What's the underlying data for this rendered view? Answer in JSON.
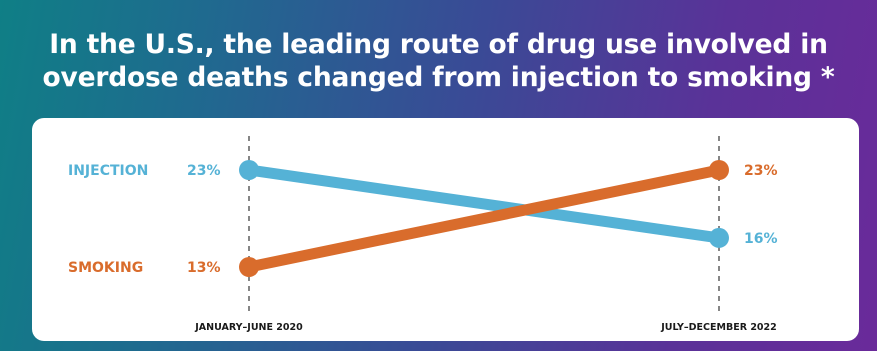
{
  "headline": {
    "line1": "In the U.S., the leading route of drug use involved in",
    "line2": "overdose deaths changed from injection to smoking *"
  },
  "colors": {
    "injection": "#55b2d6",
    "smoking": "#d96c2c",
    "background_start": "#0f7f86",
    "background_end": "#6a2a9a"
  },
  "chart_data": {
    "type": "line",
    "categories": [
      "JANUARY–JUNE 2020",
      "JULY–DECEMBER 2022"
    ],
    "series": [
      {
        "name": "INJECTION",
        "values": [
          23,
          16
        ],
        "value_labels": [
          "23%",
          "16%"
        ],
        "color": "#55b2d6"
      },
      {
        "name": "SMOKING",
        "values": [
          13,
          23
        ],
        "value_labels": [
          "13%",
          "23%"
        ],
        "color": "#d96c2c"
      }
    ],
    "unit": "%",
    "ylim": [
      10,
      26
    ],
    "grid": false,
    "legend": "left"
  }
}
